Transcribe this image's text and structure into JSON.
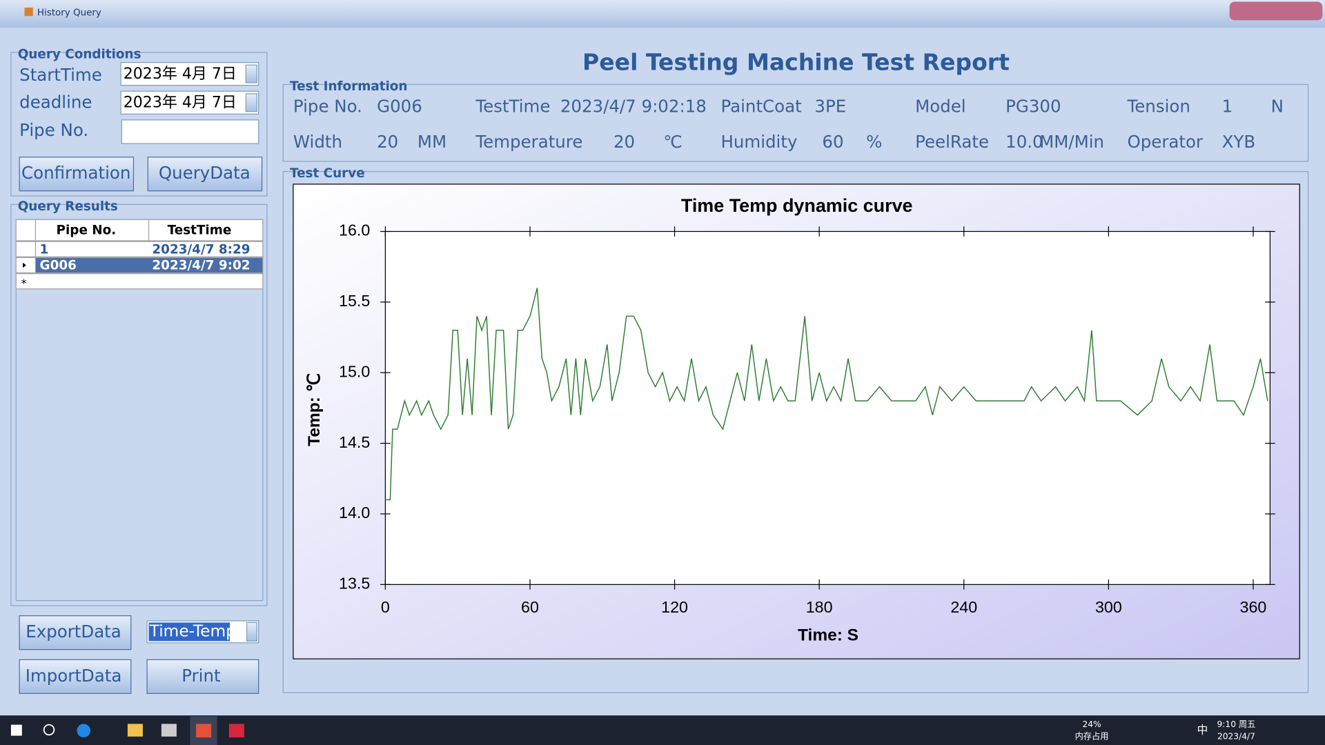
{
  "window": {
    "title": "History Query"
  },
  "report_title": "Peel Testing Machine Test Report",
  "query_conditions": {
    "title": "Query Conditions",
    "start_label": "StartTime",
    "start_value": "2023年  4月  7日",
    "deadline_label": "deadline",
    "deadline_value": "2023年  4月  7日",
    "pipe_label": "Pipe No.",
    "confirm_button": "Confirmation",
    "query_button": "QueryData"
  },
  "query_results": {
    "title": "Query Results",
    "columns": [
      "Pipe No.",
      "TestTime"
    ],
    "rows": [
      [
        "1",
        "2023/4/7 8:29"
      ],
      [
        "G006",
        "2023/4/7 9:02"
      ]
    ],
    "new_row_marker": "*"
  },
  "actions": {
    "export_button": "ExportData",
    "import_button": "ImportData",
    "print_button": "Print",
    "curve_select": "Time-Temp"
  },
  "test_information": {
    "title": "Test Information",
    "rows": [
      [
        {
          "label": "Pipe No.",
          "value": "G006"
        },
        {
          "label": "TestTime",
          "value": "2023/4/7 9:02:18"
        },
        {
          "label": "PaintCoat",
          "value": "3PE"
        },
        {
          "label": "Model",
          "value": "PG300"
        },
        {
          "label": "Tension",
          "value": "1",
          "unit": "N"
        }
      ],
      [
        {
          "label": "Width",
          "value": "20",
          "unit": "MM"
        },
        {
          "label": "Temperature",
          "value": "20",
          "unit": "℃"
        },
        {
          "label": "Humidity",
          "value": "60",
          "unit": "%"
        },
        {
          "label": "PeelRate",
          "value": "10.0",
          "unit": "MM/Min"
        },
        {
          "label": "Operator",
          "value": "XYB"
        }
      ]
    ]
  },
  "test_curve_title": "Test Curve",
  "taskbar": {
    "memory_percent": "24%",
    "memory_label": "内存占用",
    "ime": "中",
    "clock_time": "9:10 周五",
    "clock_date": "2023/4/7"
  },
  "chart_data": {
    "type": "line",
    "title": "Time Temp dynamic curve",
    "x_label": "Time: S",
    "y_label": "Temp: ℃",
    "color": "#2e7d32",
    "x": [
      0,
      2,
      3,
      5,
      8,
      10,
      13,
      15,
      18,
      20,
      23,
      26,
      28,
      30,
      32,
      34,
      36,
      38,
      40,
      42,
      44,
      46,
      49,
      51,
      53,
      55,
      57,
      60,
      63,
      65,
      67,
      69,
      72,
      75,
      77,
      79,
      81,
      83,
      86,
      89,
      92,
      94,
      97,
      100,
      103,
      106,
      109,
      112,
      115,
      118,
      121,
      124,
      127,
      130,
      133,
      136,
      140,
      143,
      146,
      149,
      152,
      155,
      158,
      161,
      164,
      167,
      170,
      174,
      177,
      180,
      183,
      186,
      189,
      192,
      195,
      200,
      205,
      210,
      220,
      224,
      227,
      230,
      235,
      240,
      245,
      250,
      265,
      268,
      272,
      278,
      282,
      287,
      290,
      293,
      295,
      305,
      312,
      318,
      322,
      325,
      330,
      334,
      338,
      342,
      345,
      352,
      356,
      360,
      363,
      366
    ],
    "values": [
      14.1,
      14.1,
      14.6,
      14.6,
      14.8,
      14.7,
      14.8,
      14.7,
      14.8,
      14.7,
      14.6,
      14.7,
      15.3,
      15.3,
      14.7,
      15.1,
      14.7,
      15.4,
      15.3,
      15.4,
      14.7,
      15.3,
      15.3,
      14.6,
      14.7,
      15.3,
      15.3,
      15.4,
      15.6,
      15.1,
      15.0,
      14.8,
      14.9,
      15.1,
      14.7,
      15.1,
      14.7,
      15.1,
      14.8,
      14.9,
      15.2,
      14.8,
      15.0,
      15.4,
      15.4,
      15.3,
      15.0,
      14.9,
      15.0,
      14.8,
      14.9,
      14.8,
      15.1,
      14.8,
      14.9,
      14.7,
      14.6,
      14.8,
      15.0,
      14.8,
      15.2,
      14.8,
      15.1,
      14.8,
      14.9,
      14.8,
      14.8,
      15.4,
      14.8,
      15.0,
      14.8,
      14.9,
      14.8,
      15.1,
      14.8,
      14.8,
      14.9,
      14.8,
      14.8,
      14.9,
      14.7,
      14.9,
      14.8,
      14.9,
      14.8,
      14.8,
      14.8,
      14.9,
      14.8,
      14.9,
      14.8,
      14.9,
      14.8,
      15.3,
      14.8,
      14.8,
      14.7,
      14.8,
      15.1,
      14.9,
      14.8,
      14.9,
      14.8,
      15.2,
      14.8,
      14.8,
      14.7,
      14.9,
      15.1,
      14.8
    ],
    "xlim": [
      0,
      367
    ],
    "xticks": [
      0,
      60,
      120,
      180,
      240,
      300,
      360
    ],
    "ylim": [
      13.5,
      16.0
    ],
    "yticks": [
      {
        "value": 13.5,
        "label": "13.5"
      },
      {
        "value": 14,
        "label": "14.0"
      },
      14.5,
      {
        "value": 15,
        "label": "15.0"
      },
      15.5,
      {
        "value": 16,
        "label": "16.0"
      }
    ],
    "grid": false
  }
}
